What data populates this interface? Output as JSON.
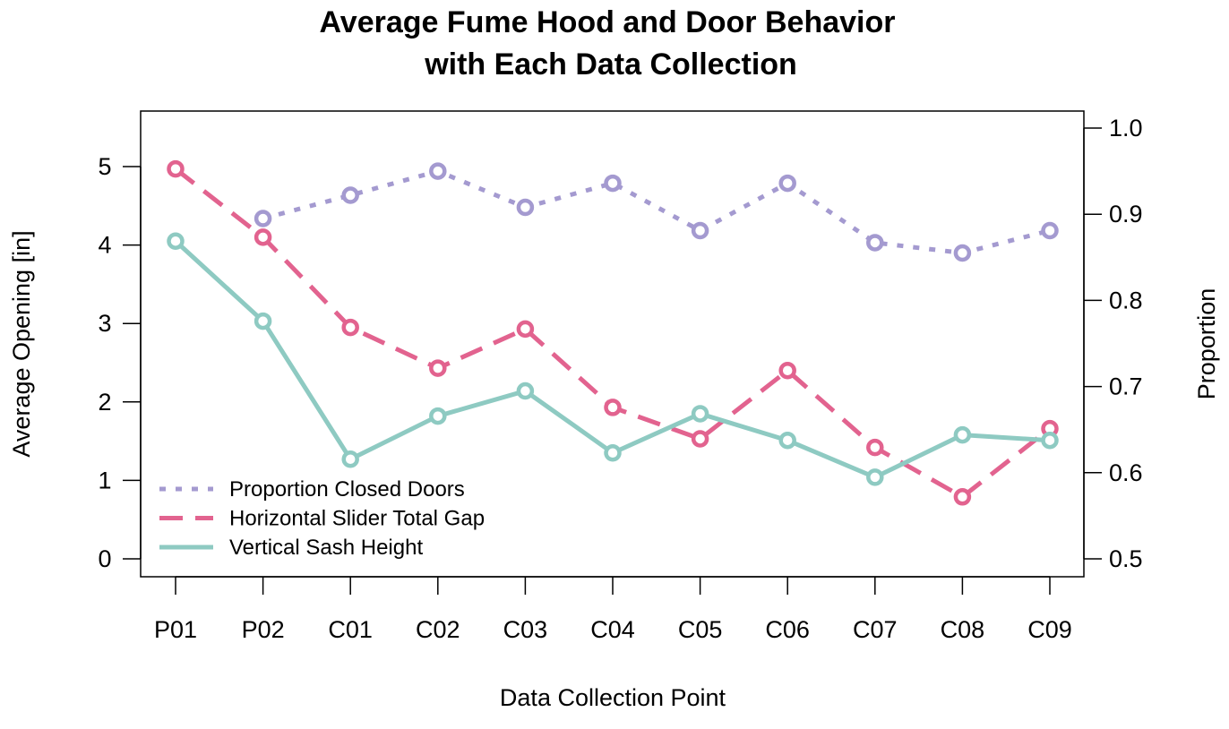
{
  "chart_data": {
    "type": "line",
    "title_line1": "Average Fume Hood and Door Behavior",
    "title_line2": "with Each Data Collection",
    "xlabel": "Data Collection Point",
    "ylabel_left": "Average Opening [in]",
    "ylabel_right": "Proportion",
    "categories": [
      "P01",
      "P02",
      "C01",
      "C02",
      "C03",
      "C04",
      "C05",
      "C06",
      "C07",
      "C08",
      "C09"
    ],
    "ylim_left": [
      0,
      5
    ],
    "yticks_left": [
      "0",
      "1",
      "2",
      "3",
      "4",
      "5"
    ],
    "ylim_right": [
      0.5,
      1.0
    ],
    "yticks_right": [
      "0.5",
      "0.6",
      "0.7",
      "0.8",
      "0.9",
      "1.0"
    ],
    "grid": false,
    "legend_position": "bottom-left",
    "series": [
      {
        "name": "Proportion Closed Doors",
        "axis": "right",
        "color": "#a49ad0",
        "dash": "dotted",
        "values": [
          null,
          0.895,
          0.922,
          0.95,
          0.908,
          0.936,
          0.881,
          0.936,
          0.867,
          0.855,
          0.881
        ]
      },
      {
        "name": "Horizontal Slider Total Gap",
        "axis": "left",
        "color": "#e2638f",
        "dash": "dashed",
        "values": [
          4.97,
          4.1,
          2.95,
          2.43,
          2.93,
          1.93,
          1.53,
          2.4,
          1.42,
          0.79,
          1.66
        ]
      },
      {
        "name": "Vertical Sash Height",
        "axis": "left",
        "color": "#8ecac2",
        "dash": "solid",
        "values": [
          4.05,
          3.03,
          1.27,
          1.82,
          2.14,
          1.35,
          1.85,
          1.51,
          1.04,
          1.58,
          1.51
        ]
      }
    ]
  }
}
